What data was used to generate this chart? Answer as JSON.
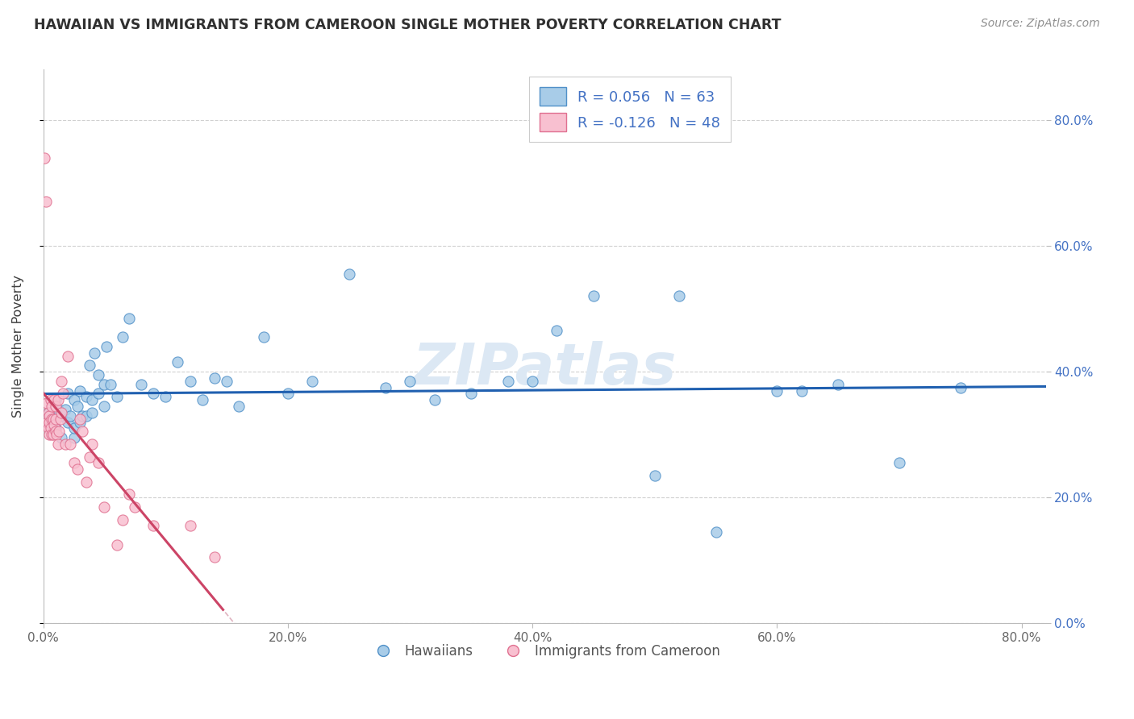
{
  "title": "HAWAIIAN VS IMMIGRANTS FROM CAMEROON SINGLE MOTHER POVERTY CORRELATION CHART",
  "source": "Source: ZipAtlas.com",
  "ylabel": "Single Mother Poverty",
  "r_hawaiian": 0.056,
  "n_hawaiian": 63,
  "r_cameroon": -0.126,
  "n_cameroon": 48,
  "color_hawaiian_fill": "#a8cce8",
  "color_hawaiian_edge": "#5090c8",
  "color_cameroon_fill": "#f8c0d0",
  "color_cameroon_edge": "#e07090",
  "color_hawaiian_line": "#2060b0",
  "color_cameroon_line": "#cc4466",
  "color_dashed_line": "#d8a0b0",
  "color_grid": "#d0d0d0",
  "background": "#ffffff",
  "title_color": "#303030",
  "source_color": "#909090",
  "axis_tick_color": "#4472c4",
  "watermark_color": "#dce8f4",
  "hawaiian_x": [
    0.004,
    0.006,
    0.008,
    0.01,
    0.01,
    0.012,
    0.015,
    0.015,
    0.018,
    0.02,
    0.02,
    0.022,
    0.025,
    0.025,
    0.025,
    0.028,
    0.03,
    0.03,
    0.032,
    0.035,
    0.035,
    0.038,
    0.04,
    0.04,
    0.042,
    0.045,
    0.045,
    0.05,
    0.05,
    0.052,
    0.055,
    0.06,
    0.065,
    0.07,
    0.08,
    0.09,
    0.1,
    0.11,
    0.12,
    0.13,
    0.14,
    0.15,
    0.16,
    0.18,
    0.2,
    0.22,
    0.25,
    0.28,
    0.3,
    0.32,
    0.35,
    0.38,
    0.4,
    0.42,
    0.45,
    0.5,
    0.52,
    0.55,
    0.6,
    0.62,
    0.65,
    0.7,
    0.75
  ],
  "hawaiian_y": [
    0.335,
    0.325,
    0.32,
    0.355,
    0.31,
    0.34,
    0.33,
    0.295,
    0.34,
    0.32,
    0.365,
    0.33,
    0.355,
    0.295,
    0.31,
    0.345,
    0.32,
    0.37,
    0.33,
    0.36,
    0.33,
    0.41,
    0.355,
    0.335,
    0.43,
    0.365,
    0.395,
    0.38,
    0.345,
    0.44,
    0.38,
    0.36,
    0.455,
    0.485,
    0.38,
    0.365,
    0.36,
    0.415,
    0.385,
    0.355,
    0.39,
    0.385,
    0.345,
    0.455,
    0.365,
    0.385,
    0.555,
    0.375,
    0.385,
    0.355,
    0.365,
    0.385,
    0.385,
    0.465,
    0.52,
    0.235,
    0.52,
    0.145,
    0.37,
    0.37,
    0.38,
    0.255,
    0.375
  ],
  "cameroon_x": [
    0.001,
    0.002,
    0.003,
    0.003,
    0.004,
    0.004,
    0.005,
    0.005,
    0.005,
    0.006,
    0.006,
    0.007,
    0.007,
    0.007,
    0.008,
    0.008,
    0.009,
    0.009,
    0.01,
    0.01,
    0.01,
    0.011,
    0.012,
    0.012,
    0.013,
    0.014,
    0.015,
    0.015,
    0.016,
    0.018,
    0.02,
    0.022,
    0.025,
    0.028,
    0.03,
    0.032,
    0.035,
    0.038,
    0.04,
    0.045,
    0.05,
    0.06,
    0.065,
    0.07,
    0.075,
    0.09,
    0.12,
    0.14
  ],
  "cameroon_y": [
    0.74,
    0.67,
    0.35,
    0.32,
    0.335,
    0.31,
    0.33,
    0.32,
    0.3,
    0.31,
    0.355,
    0.3,
    0.325,
    0.345,
    0.325,
    0.3,
    0.315,
    0.355,
    0.305,
    0.325,
    0.345,
    0.3,
    0.355,
    0.285,
    0.305,
    0.325,
    0.385,
    0.335,
    0.365,
    0.285,
    0.425,
    0.285,
    0.255,
    0.245,
    0.325,
    0.305,
    0.225,
    0.265,
    0.285,
    0.255,
    0.185,
    0.125,
    0.165,
    0.205,
    0.185,
    0.155,
    0.155,
    0.105
  ],
  "xlim": [
    0.0,
    0.82
  ],
  "ylim": [
    0.0,
    0.88
  ],
  "xticks": [
    0.0,
    0.2,
    0.4,
    0.6,
    0.8
  ],
  "yticks": [
    0.0,
    0.2,
    0.4,
    0.6,
    0.8
  ],
  "figsize": [
    14.06,
    8.92
  ],
  "dpi": 100
}
